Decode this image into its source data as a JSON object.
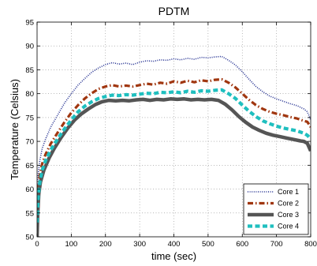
{
  "chart_data": {
    "type": "line",
    "title": "PDTM",
    "xlabel": "time (sec)",
    "ylabel": "Temperature (Celsius)",
    "xlim": [
      0,
      800
    ],
    "ylim": [
      50,
      95
    ],
    "xticks": [
      0,
      100,
      200,
      300,
      400,
      500,
      600,
      700,
      800
    ],
    "yticks": [
      50,
      55,
      60,
      65,
      70,
      75,
      80,
      85,
      90,
      95
    ],
    "grid": true,
    "legend_position": "bottom-right",
    "series": [
      {
        "name": "Core 1",
        "color": "#1f2c8f",
        "style": "dotted",
        "x": [
          0,
          3,
          8,
          15,
          25,
          40,
          60,
          80,
          100,
          120,
          140,
          160,
          180,
          200,
          220,
          240,
          260,
          280,
          300,
          320,
          340,
          360,
          380,
          400,
          420,
          440,
          460,
          480,
          500,
          520,
          540,
          560,
          580,
          600,
          620,
          640,
          660,
          680,
          700,
          720,
          740,
          760,
          780,
          790,
          800
        ],
        "y": [
          58,
          63,
          66,
          68.5,
          70.5,
          73,
          75.5,
          78,
          80,
          81.8,
          83.2,
          84.5,
          85.4,
          86.1,
          86.5,
          86.2,
          86.4,
          86.1,
          86.6,
          86.9,
          86.8,
          87.1,
          87.0,
          87.3,
          87.1,
          87.4,
          87.2,
          87.6,
          87.5,
          87.7,
          87.8,
          87.0,
          86.0,
          84.6,
          83.0,
          81.5,
          80.4,
          79.5,
          78.9,
          78.4,
          77.9,
          77.5,
          76.8,
          76.2,
          74.5
        ]
      },
      {
        "name": "Core 2",
        "color": "#a0360f",
        "style": "dashdot",
        "x": [
          0,
          3,
          8,
          15,
          25,
          40,
          60,
          80,
          100,
          120,
          140,
          160,
          180,
          200,
          220,
          240,
          260,
          280,
          300,
          320,
          340,
          360,
          380,
          400,
          420,
          440,
          460,
          480,
          500,
          520,
          540,
          560,
          580,
          600,
          620,
          640,
          660,
          680,
          700,
          720,
          740,
          760,
          780,
          790,
          800
        ],
        "y": [
          55,
          60,
          63,
          65.3,
          67.3,
          69.5,
          71.8,
          74.0,
          76.0,
          77.6,
          79.0,
          80.1,
          81.0,
          81.5,
          81.8,
          81.5,
          81.7,
          81.5,
          81.8,
          82.1,
          81.9,
          82.3,
          82.1,
          82.6,
          82.3,
          82.7,
          82.4,
          82.8,
          82.6,
          82.9,
          83.0,
          82.3,
          81.3,
          80.0,
          78.7,
          77.6,
          76.8,
          76.2,
          75.8,
          75.5,
          75.1,
          74.8,
          74.3,
          74.1,
          73.0
        ]
      },
      {
        "name": "Core 3",
        "color": "#555555",
        "style": "solid",
        "x": [
          0,
          2,
          5,
          10,
          20,
          35,
          50,
          70,
          90,
          110,
          130,
          150,
          170,
          190,
          210,
          230,
          250,
          270,
          290,
          310,
          330,
          350,
          370,
          390,
          410,
          430,
          450,
          470,
          490,
          510,
          530,
          550,
          570,
          590,
          610,
          630,
          650,
          670,
          690,
          710,
          730,
          750,
          770,
          780,
          790,
          800
        ],
        "y": [
          50,
          55,
          59,
          61.5,
          64,
          66.5,
          68.5,
          70.8,
          72.8,
          74.5,
          75.8,
          76.8,
          77.7,
          78.3,
          78.6,
          78.5,
          78.6,
          78.5,
          78.7,
          78.8,
          78.6,
          78.8,
          78.7,
          78.9,
          78.8,
          78.9,
          78.7,
          78.8,
          78.7,
          78.8,
          78.6,
          77.8,
          76.6,
          75.2,
          74.0,
          73.0,
          72.3,
          71.7,
          71.3,
          71.0,
          70.7,
          70.4,
          70.1,
          70.0,
          69.6,
          68.0
        ]
      },
      {
        "name": "Core 4",
        "color": "#1fbfbf",
        "style": "dashed",
        "x": [
          0,
          3,
          8,
          15,
          25,
          40,
          60,
          80,
          100,
          120,
          140,
          160,
          180,
          200,
          220,
          240,
          260,
          280,
          300,
          320,
          340,
          360,
          380,
          400,
          420,
          440,
          460,
          480,
          500,
          520,
          540,
          560,
          580,
          600,
          620,
          640,
          660,
          680,
          700,
          720,
          740,
          760,
          780,
          790,
          800
        ],
        "y": [
          53,
          58,
          61.5,
          64,
          66,
          68.2,
          70.5,
          72.6,
          74.5,
          76.2,
          77.4,
          78.3,
          79.0,
          79.4,
          79.7,
          79.6,
          79.8,
          79.7,
          79.9,
          80.1,
          80.0,
          80.3,
          80.2,
          80.4,
          80.2,
          80.5,
          80.3,
          80.6,
          80.5,
          80.7,
          80.8,
          80.0,
          79.0,
          77.6,
          76.3,
          75.2,
          74.3,
          73.7,
          73.2,
          72.8,
          72.5,
          72.2,
          71.7,
          71.3,
          70.5
        ]
      }
    ]
  }
}
